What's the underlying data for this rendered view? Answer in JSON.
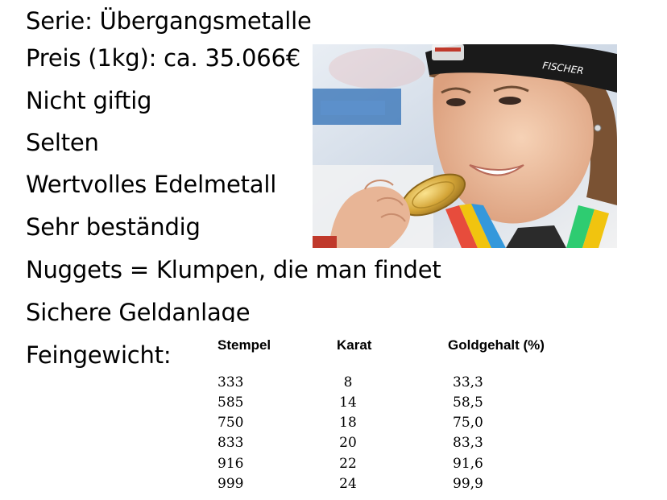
{
  "facts": [
    "Serie: Übergangsmetalle",
    "Preis (1kg): ca. 35.066€",
    "Nicht giftig",
    "Selten",
    "Wertvolles Edelmetall",
    "Sehr beständig",
    "Nuggets = Klumpen, die man findet",
    "Sichere Geldanlage",
    "Feingewicht:"
  ],
  "photo": {
    "headband_text": "FISCHER",
    "subject": "athlete-biting-gold-medal"
  },
  "table": {
    "headers": [
      "Stempel",
      "Karat",
      "Goldgehalt (%)"
    ],
    "rows": [
      [
        "333",
        "8",
        "33,3"
      ],
      [
        "585",
        "14",
        "58,5"
      ],
      [
        "750",
        "18",
        "75,0"
      ],
      [
        "833",
        "20",
        "83,3"
      ],
      [
        "916",
        "22",
        "91,6"
      ],
      [
        "999",
        "24",
        "99,9"
      ]
    ]
  },
  "colors": {
    "text": "#000000",
    "background": "#ffffff",
    "gold": "#d4a537",
    "headband": "#1a1a1a"
  }
}
